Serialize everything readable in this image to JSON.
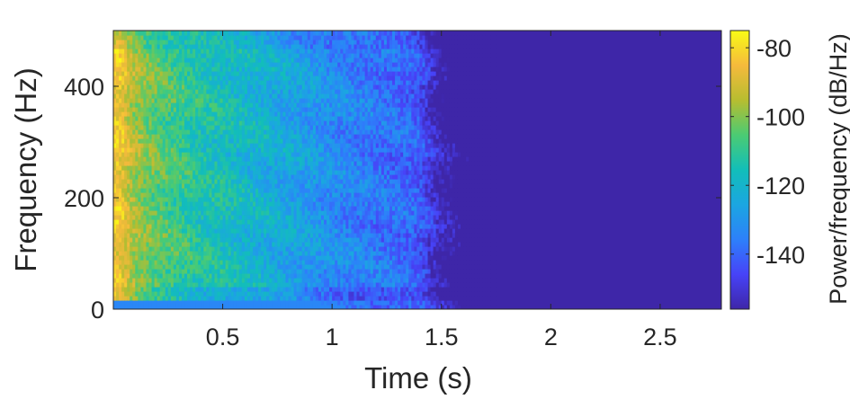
{
  "chart_data": {
    "type": "heatmap",
    "title": "",
    "xlabel": "Time (s)",
    "ylabel": "Frequency (Hz)",
    "colorbar_label": "Power/frequency (dB/Hz)",
    "colormap": "parula",
    "xlim": [
      0.0,
      2.78
    ],
    "ylim": [
      0,
      500
    ],
    "clim": [
      -156,
      -75
    ],
    "x_ticks": [
      0.5,
      1,
      1.5,
      2,
      2.5
    ],
    "x_tick_labels": [
      "0.5",
      "1",
      "1.5",
      "2",
      "2.5"
    ],
    "y_ticks": [
      0,
      200,
      400
    ],
    "y_tick_labels": [
      "0",
      "200",
      "400"
    ],
    "colorbar_ticks": [
      -80,
      -100,
      -120,
      -140
    ],
    "colorbar_tick_labels": [
      "-80",
      "-100",
      "-120",
      "-140"
    ],
    "approx_power_profile_vs_time": {
      "time_s": [
        0.03,
        0.1,
        0.2,
        0.4,
        0.6,
        0.8,
        1.0,
        1.2,
        1.4,
        1.5,
        1.7,
        2.0,
        2.5,
        2.78
      ],
      "power_db_hz": [
        -85,
        -97,
        -104,
        -113,
        -119,
        -125,
        -132,
        -137,
        -140,
        -149,
        -156,
        -156,
        -156,
        -156
      ]
    }
  }
}
